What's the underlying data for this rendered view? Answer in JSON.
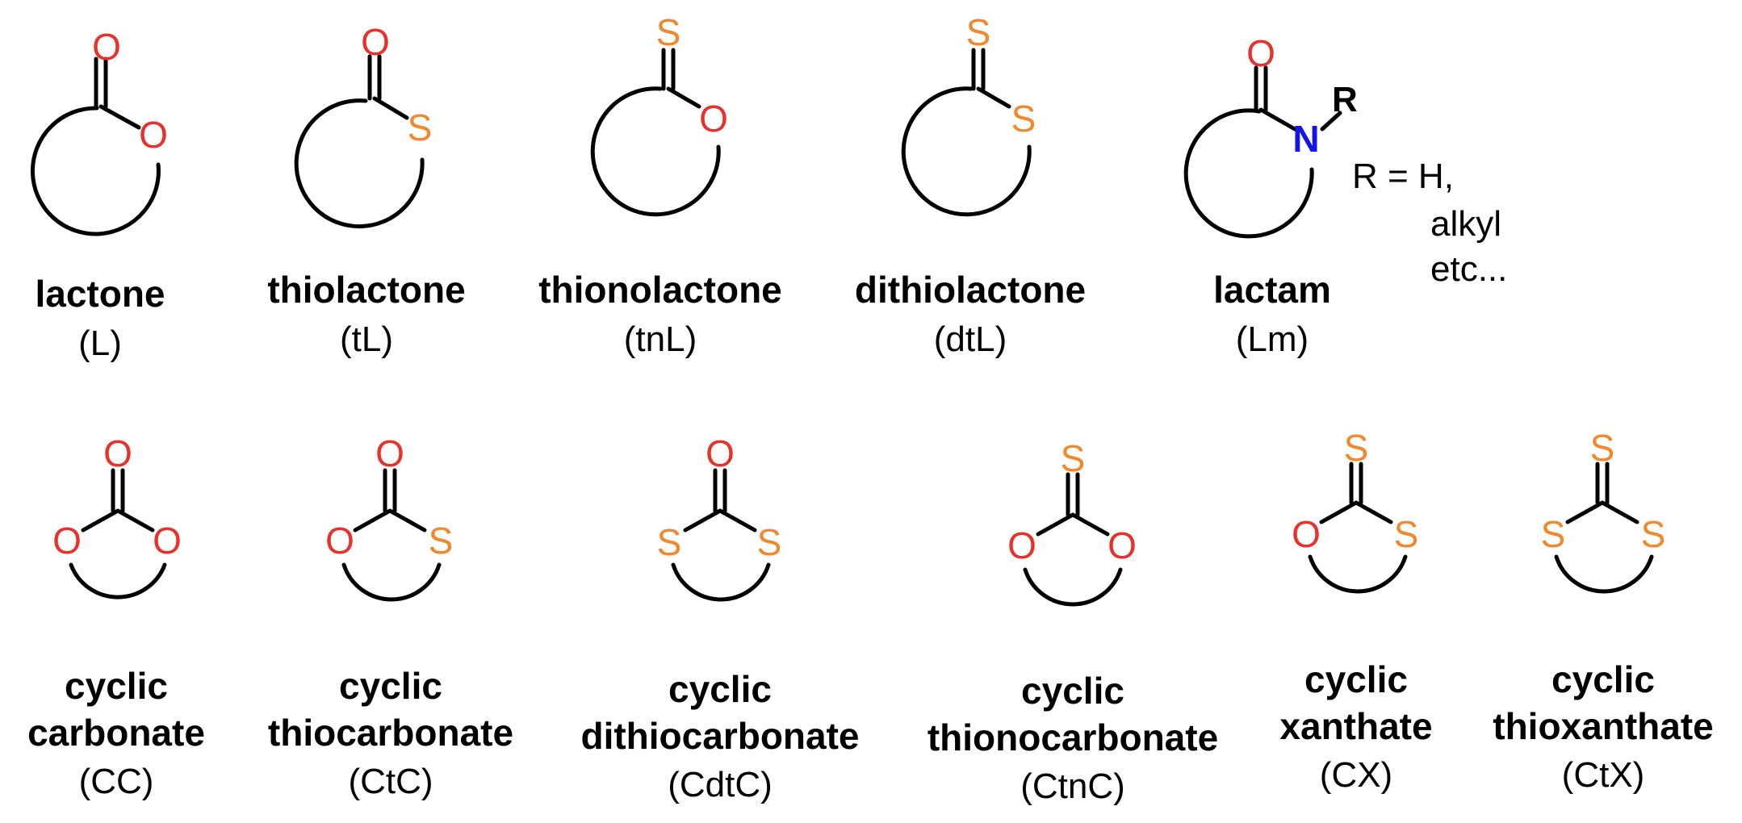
{
  "colors": {
    "oxygen": "#e8312a",
    "sulfur": "#f0882e",
    "nitrogen": "#1414e6",
    "bond": "#000000"
  },
  "lactones": [
    {
      "name": "lactone",
      "abbr": "(L)",
      "carbonyl_atom": "O",
      "ring_atom": "O"
    },
    {
      "name": "thiolactone",
      "abbr": "(tL)",
      "carbonyl_atom": "O",
      "ring_atom": "S"
    },
    {
      "name": "thionolactone",
      "abbr": "(tnL)",
      "carbonyl_atom": "S",
      "ring_atom": "O"
    },
    {
      "name": "dithiolactone",
      "abbr": "(dtL)",
      "carbonyl_atom": "S",
      "ring_atom": "S"
    },
    {
      "name": "lactam",
      "abbr": "(Lm)",
      "carbonyl_atom": "O",
      "ring_atom": "N",
      "substituent": "R"
    }
  ],
  "lactam_note": {
    "line1": "R = H,",
    "line2": "alkyl",
    "line3": "etc..."
  },
  "carbonates": [
    {
      "name1": "cyclic",
      "name2": "carbonate",
      "abbr": "(CC)",
      "top_atom": "O",
      "left_atom": "O",
      "right_atom": "O"
    },
    {
      "name1": "cyclic",
      "name2": "thiocarbonate",
      "abbr": "(CtC)",
      "top_atom": "O",
      "left_atom": "O",
      "right_atom": "S"
    },
    {
      "name1": "cyclic",
      "name2": "dithiocarbonate",
      "abbr": "(CdtC)",
      "top_atom": "O",
      "left_atom": "S",
      "right_atom": "S"
    },
    {
      "name1": "cyclic",
      "name2": "thionocarbonate",
      "abbr": "(CtnC)",
      "top_atom": "S",
      "left_atom": "O",
      "right_atom": "O"
    },
    {
      "name1": "cyclic",
      "name2": "xanthate",
      "abbr": "(CX)",
      "top_atom": "S",
      "left_atom": "O",
      "right_atom": "S"
    },
    {
      "name1": "cyclic",
      "name2": "thioxanthate",
      "abbr": "(CtX)",
      "top_atom": "S",
      "left_atom": "S",
      "right_atom": "S"
    }
  ]
}
